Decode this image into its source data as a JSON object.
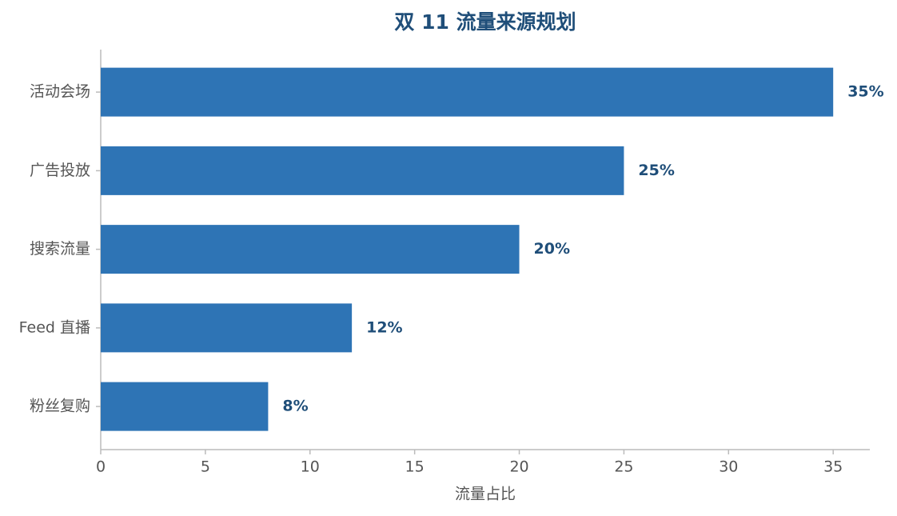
{
  "chart_data": {
    "type": "bar",
    "orientation": "horizontal",
    "title": "双 11 流量来源规划",
    "x_label": "流量占比",
    "categories": [
      "活动会场",
      "广告投放",
      "搜索流量",
      "Feed 直播",
      "粉丝复购"
    ],
    "values": [
      35,
      25,
      20,
      12,
      8
    ],
    "value_labels": [
      "35%",
      "25%",
      "20%",
      "12%",
      "8%"
    ],
    "color": "#2e74b5",
    "xlim": [
      0,
      36.75
    ],
    "xticks": [
      0,
      5,
      10,
      15,
      20,
      25,
      30,
      35
    ]
  }
}
